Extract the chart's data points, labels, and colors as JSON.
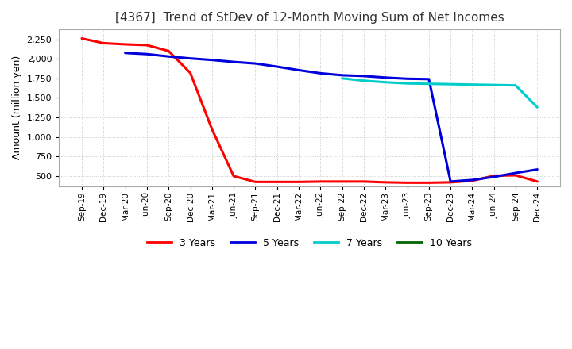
{
  "title": "[4367]  Trend of StDev of 12-Month Moving Sum of Net Incomes",
  "ylabel": "Amount (million yen)",
  "background_color": "#ffffff",
  "grid_color": "#cccccc",
  "x_labels": [
    "Sep-19",
    "Dec-19",
    "Mar-20",
    "Jun-20",
    "Sep-20",
    "Dec-20",
    "Mar-21",
    "Jun-21",
    "Sep-21",
    "Dec-21",
    "Mar-22",
    "Jun-22",
    "Sep-22",
    "Dec-22",
    "Mar-23",
    "Jun-23",
    "Sep-23",
    "Dec-23",
    "Mar-24",
    "Jun-24",
    "Sep-24",
    "Dec-24"
  ],
  "series": {
    "3 Years": {
      "color": "#ff0000",
      "data": [
        2260,
        2200,
        2185,
        2175,
        2100,
        1820,
        1100,
        500,
        425,
        425,
        425,
        430,
        430,
        430,
        420,
        415,
        415,
        420,
        440,
        505,
        510,
        430
      ]
    },
    "5 Years": {
      "color": "#0000dd",
      "data": [
        null,
        null,
        2075,
        2060,
        2030,
        2005,
        1985,
        1960,
        1940,
        1900,
        1855,
        1815,
        1790,
        1780,
        1760,
        1745,
        1740,
        430,
        450,
        490,
        540,
        585
      ]
    },
    "7 Years": {
      "color": "#00cccc",
      "data": [
        null,
        null,
        null,
        null,
        null,
        null,
        null,
        null,
        null,
        null,
        null,
        null,
        1750,
        1720,
        1700,
        1685,
        1680,
        1675,
        1670,
        1665,
        1660,
        1380
      ]
    },
    "10 Years": {
      "color": "#006600",
      "data": [
        null,
        null,
        null,
        null,
        null,
        null,
        null,
        null,
        null,
        null,
        null,
        null,
        null,
        null,
        null,
        null,
        null,
        null,
        null,
        null,
        null,
        null
      ]
    }
  },
  "ylim": [
    370,
    2380
  ],
  "yticks": [
    500,
    750,
    1000,
    1250,
    1500,
    1750,
    2000,
    2250
  ],
  "legend_labels": [
    "3 Years",
    "5 Years",
    "7 Years",
    "10 Years"
  ],
  "legend_colors": [
    "#ff0000",
    "#0000dd",
    "#00cccc",
    "#006600"
  ]
}
